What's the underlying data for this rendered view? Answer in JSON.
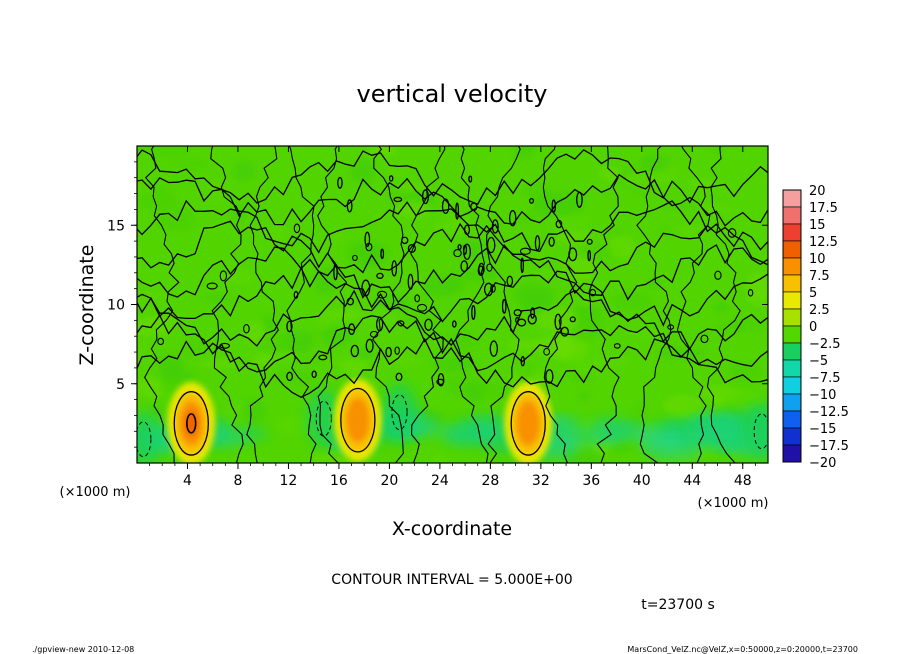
{
  "chart_data": {
    "type": "heatmap",
    "title": "vertical velocity",
    "xlabel": "X-coordinate",
    "ylabel": "Z-coordinate",
    "x_units": "(×1000 m)",
    "z_units": "(×1000 m)",
    "xlim": [
      0,
      50
    ],
    "ylim": [
      0,
      20
    ],
    "x_ticks": [
      4,
      8,
      12,
      16,
      20,
      24,
      28,
      32,
      36,
      40,
      44,
      48
    ],
    "x_tick_labels": [
      "4",
      "8",
      "12",
      "16",
      "20",
      "24",
      "28",
      "32",
      "36",
      "40",
      "44",
      "48"
    ],
    "y_ticks": [
      5,
      10,
      15
    ],
    "y_tick_labels": [
      "5",
      "10",
      "15"
    ],
    "contour_interval_text": "CONTOUR INTERVAL = 5.000E+00",
    "contour_interval": 5,
    "time_label": "t=23700 s",
    "colorbar": {
      "levels": [
        20,
        17.5,
        15,
        12.5,
        10,
        7.5,
        5,
        2.5,
        0,
        -2.5,
        -5,
        -7.5,
        -10,
        -12.5,
        -15,
        -17.5,
        -20
      ],
      "level_labels": [
        "20",
        "17.5",
        "15",
        "12.5",
        "10",
        "7.5",
        "5",
        "2.5",
        "0",
        "−2.5",
        "−5",
        "−7.5",
        "−10",
        "−12.5",
        "−15",
        "−17.5",
        "−20"
      ],
      "colors": [
        "#f4a0a0",
        "#f07070",
        "#ee4030",
        "#f06000",
        "#f89000",
        "#f8c000",
        "#e8e800",
        "#a8e000",
        "#50d800",
        "#18d060",
        "#10d8a8",
        "#10d0e0",
        "#10a0f0",
        "#1060f0",
        "#1030d0",
        "#2010a8",
        "#6010a8"
      ]
    },
    "plumes": [
      {
        "x": 4.3,
        "z": 2.5,
        "w_max": 10
      },
      {
        "x": 17.5,
        "z": 2.7,
        "w_max": 8
      },
      {
        "x": 31.0,
        "z": 2.5,
        "w_max": 8
      }
    ],
    "downdrafts": [
      {
        "x": 14.8,
        "z": 2.8,
        "w_min": -5
      },
      {
        "x": 20.8,
        "z": 3.2,
        "w_min": -3
      },
      {
        "x": 49.5,
        "z": 2.0,
        "w_min": -3
      },
      {
        "x": 0.5,
        "z": 1.5,
        "w_min": -3
      }
    ]
  },
  "footer": {
    "left": "./gpview-new  2010-12-08",
    "right": "MarsCond_VelZ.nc@VelZ,x=0:50000,z=0:20000,t=23700"
  },
  "colors": {
    "field_background": "#52d400",
    "contour": "#000000"
  }
}
